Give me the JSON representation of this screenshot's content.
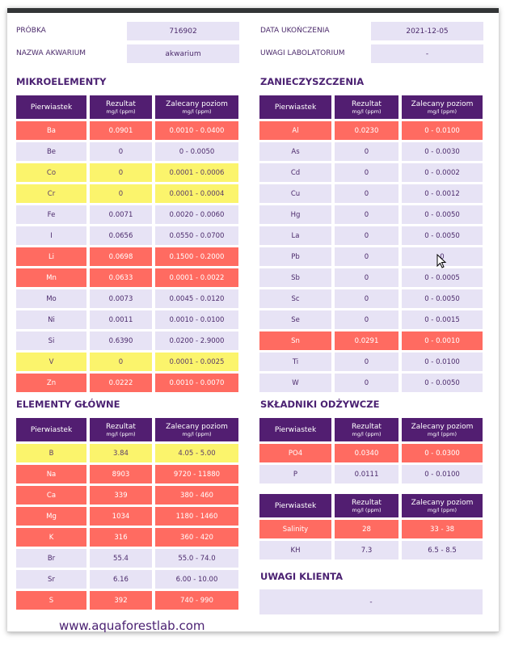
{
  "colors": {
    "header": "#521e71",
    "red": "#ff6b61",
    "yellow": "#fbf46c",
    "normal": "#e7e3f5"
  },
  "info": {
    "sample_label": "PRÓBKA",
    "sample": "716902",
    "aquarium_label": "NAZWA AKWARIUM",
    "aquarium": "akwarium",
    "date_label": "DATA UKOŃCZENIA",
    "date": "2021-12-05",
    "lab_notes_label": "UWAGI LABOLATORIUM",
    "lab_notes": "-"
  },
  "headers": {
    "element": "Pierwiastek",
    "result": "Rezultat",
    "recommended": "Zalecany poziom",
    "unit": "mg/l (ppm)"
  },
  "tables": {
    "micro": {
      "title": "MIKROELEMENTY",
      "rows": [
        [
          "Ba",
          "0.0901",
          "0.0010 - 0.0400",
          "red"
        ],
        [
          "Be",
          "0",
          "0 - 0.0050",
          "normal"
        ],
        [
          "Co",
          "0",
          "0.0001 - 0.0006",
          "yellow"
        ],
        [
          "Cr",
          "0",
          "0.0001 - 0.0004",
          "yellow"
        ],
        [
          "Fe",
          "0.0071",
          "0.0020 - 0.0060",
          "normal"
        ],
        [
          "I",
          "0.0656",
          "0.0550 - 0.0700",
          "normal"
        ],
        [
          "Li",
          "0.0698",
          "0.1500 - 0.2000",
          "red"
        ],
        [
          "Mn",
          "0.0633",
          "0.0001 - 0.0022",
          "red"
        ],
        [
          "Mo",
          "0.0073",
          "0.0045 - 0.0120",
          "normal"
        ],
        [
          "Ni",
          "0.0011",
          "0.0010 - 0.0100",
          "normal"
        ],
        [
          "Si",
          "0.6390",
          "0.0200 - 2.9000",
          "normal"
        ],
        [
          "V",
          "0",
          "0.0001 - 0.0025",
          "yellow"
        ],
        [
          "Zn",
          "0.0222",
          "0.0010 - 0.0070",
          "red"
        ]
      ]
    },
    "contaminants": {
      "title": "ZANIECZYSZCZENIA",
      "rows": [
        [
          "Al",
          "0.0230",
          "0 - 0.0100",
          "red"
        ],
        [
          "As",
          "0",
          "0 - 0.0030",
          "normal"
        ],
        [
          "Cd",
          "0",
          "0 - 0.0002",
          "normal"
        ],
        [
          "Cu",
          "0",
          "0 - 0.0012",
          "normal"
        ],
        [
          "Hg",
          "0",
          "0 - 0.0050",
          "normal"
        ],
        [
          "La",
          "0",
          "0 - 0.0050",
          "normal"
        ],
        [
          "Pb",
          "0",
          "0",
          "normal"
        ],
        [
          "Sb",
          "0",
          "0 - 0.0005",
          "normal"
        ],
        [
          "Sc",
          "0",
          "0 - 0.0050",
          "normal"
        ],
        [
          "Se",
          "0",
          "0 - 0.0015",
          "normal"
        ],
        [
          "Sn",
          "0.0291",
          "0 - 0.0010",
          "red"
        ],
        [
          "Ti",
          "0",
          "0 - 0.0100",
          "normal"
        ],
        [
          "W",
          "0",
          "0 - 0.0050",
          "normal"
        ]
      ]
    },
    "main": {
      "title": "ELEMENTY GŁÓWNE",
      "rows": [
        [
          "B",
          "3.84",
          "4.05 - 5.00",
          "yellow"
        ],
        [
          "Na",
          "8903",
          "9720 - 11880",
          "red"
        ],
        [
          "Ca",
          "339",
          "380 - 460",
          "red"
        ],
        [
          "Mg",
          "1034",
          "1180 - 1460",
          "red"
        ],
        [
          "K",
          "316",
          "360 - 420",
          "red"
        ],
        [
          "Br",
          "55.4",
          "55.0 - 74.0",
          "normal"
        ],
        [
          "Sr",
          "6.16",
          "6.00 - 10.00",
          "normal"
        ],
        [
          "S",
          "392",
          "740 - 990",
          "red"
        ]
      ]
    },
    "nutrients": {
      "title": "SKŁADNIKI ODŻYWCZE",
      "rows": [
        [
          "PO4",
          "0.0340",
          "0 - 0.0300",
          "red"
        ],
        [
          "P",
          "0.0111",
          "0 - 0.0100",
          "normal"
        ]
      ]
    },
    "other": {
      "title": "",
      "rows": [
        [
          "Salinity",
          "28",
          "33 - 38",
          "red"
        ],
        [
          "KH",
          "7.3",
          "6.5 - 8.5",
          "normal"
        ]
      ]
    }
  },
  "client_notes": {
    "title": "UWAGI KLIENTA",
    "value": "-"
  },
  "footer": {
    "website": "www.aquaforestlab.com"
  }
}
